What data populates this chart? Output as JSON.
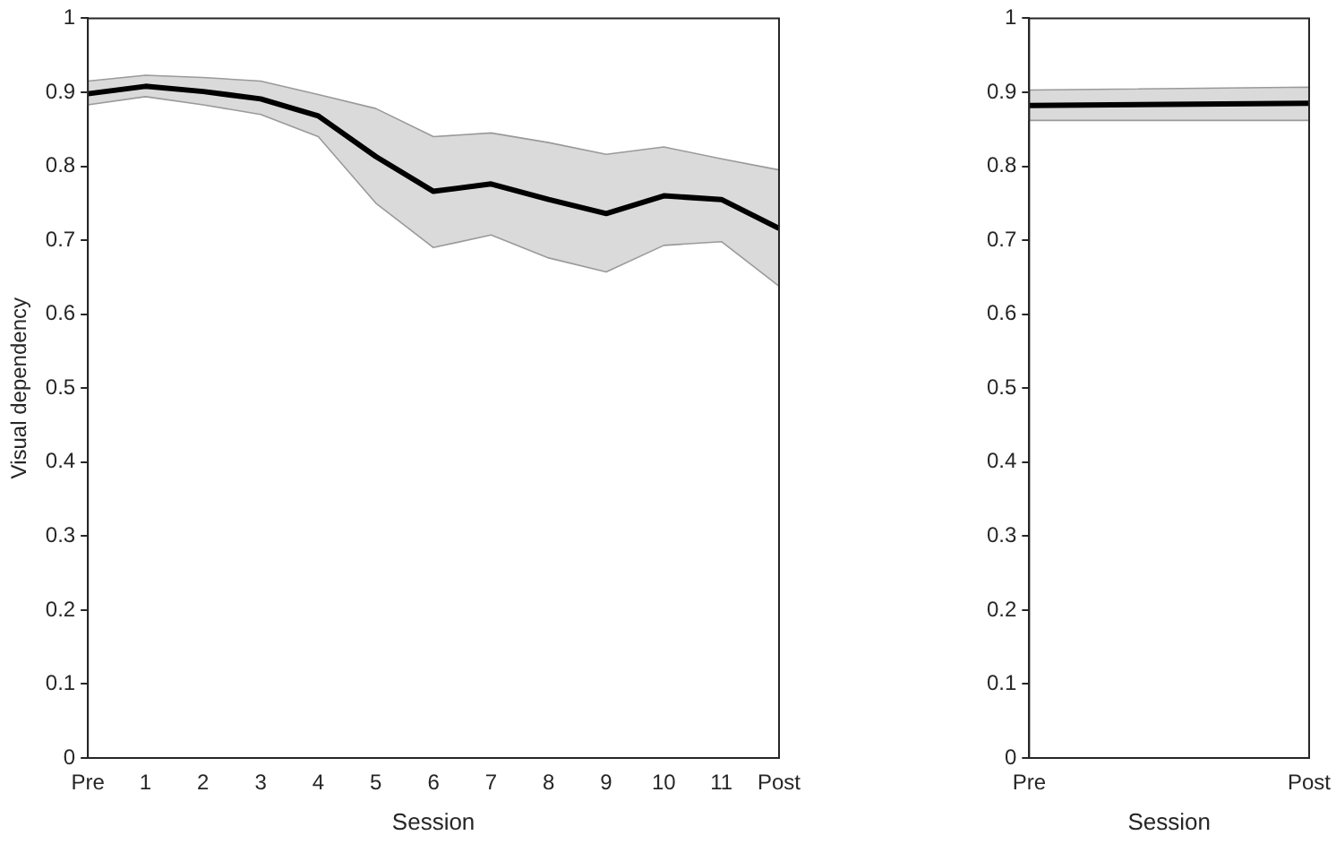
{
  "chart_data": [
    {
      "type": "line",
      "xlabel": "Session",
      "ylabel": "Visual dependency",
      "categories": [
        "Pre",
        "1",
        "2",
        "3",
        "4",
        "5",
        "6",
        "7",
        "8",
        "9",
        "10",
        "11",
        "Post"
      ],
      "series": [
        {
          "color": "#000000",
          "values": [
            0.898,
            0.908,
            0.901,
            0.891,
            0.868,
            0.813,
            0.766,
            0.776,
            0.755,
            0.736,
            0.76,
            0.755,
            0.716
          ],
          "lower": [
            0.883,
            0.894,
            0.883,
            0.87,
            0.84,
            0.75,
            0.69,
            0.707,
            0.676,
            0.657,
            0.693,
            0.698,
            0.638
          ],
          "upper": [
            0.915,
            0.923,
            0.92,
            0.915,
            0.897,
            0.878,
            0.84,
            0.845,
            0.832,
            0.816,
            0.826,
            0.81,
            0.795
          ]
        }
      ],
      "ylim": [
        0,
        1
      ],
      "yticks": [
        0,
        0.1,
        0.2,
        0.3,
        0.4,
        0.5,
        0.6,
        0.7,
        0.8,
        0.9,
        1
      ],
      "grid": false,
      "marker": "none",
      "line_style": "solid"
    },
    {
      "type": "line",
      "xlabel": "Session",
      "categories": [
        "Pre",
        "Post"
      ],
      "series": [
        {
          "color": "#000000",
          "values": [
            0.882,
            0.885
          ],
          "lower": [
            0.862,
            0.862
          ],
          "upper": [
            0.903,
            0.907
          ]
        }
      ],
      "ylim": [
        0,
        1
      ],
      "yticks": [
        0,
        0.1,
        0.2,
        0.3,
        0.4,
        0.5,
        0.6,
        0.7,
        0.8,
        0.9,
        1
      ],
      "grid": false,
      "marker": "none",
      "line_style": "solid"
    }
  ]
}
